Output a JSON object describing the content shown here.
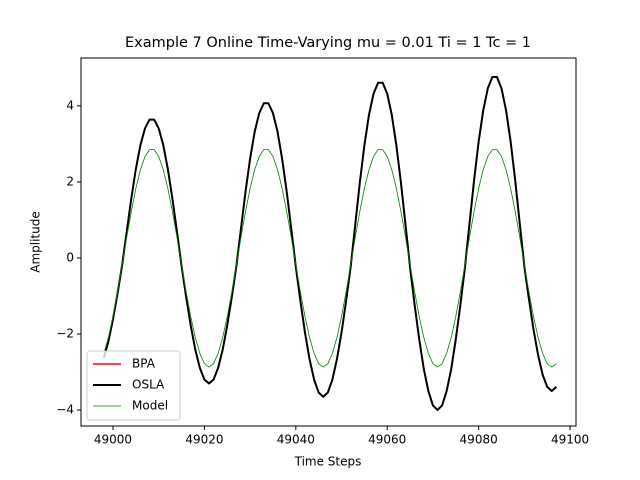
{
  "chart_data": {
    "type": "line",
    "title": "Example 7 Online Time-Varying mu = 0.01 Ti = 1 Tc = 1",
    "xlabel": "Time Steps",
    "ylabel": "Amplitude",
    "x": [
      48998,
      48999,
      49000,
      49001,
      49002,
      49003,
      49004,
      49005,
      49006,
      49007,
      49008,
      49009,
      49010,
      49011,
      49012,
      49013,
      49014,
      49015,
      49016,
      49017,
      49018,
      49019,
      49020,
      49021,
      49022,
      49023,
      49024,
      49025,
      49026,
      49027,
      49028,
      49029,
      49030,
      49031,
      49032,
      49033,
      49034,
      49035,
      49036,
      49037,
      49038,
      49039,
      49040,
      49041,
      49042,
      49043,
      49044,
      49045,
      49046,
      49047,
      49048,
      49049,
      49050,
      49051,
      49052,
      49053,
      49054,
      49055,
      49056,
      49057,
      49058,
      49059,
      49060,
      49061,
      49062,
      49063,
      49064,
      49065,
      49066,
      49067,
      49068,
      49069,
      49070,
      49071,
      49072,
      49073,
      49074,
      49075,
      49076,
      49077,
      49078,
      49079,
      49080,
      49081,
      49082,
      49083,
      49084,
      49085,
      49086,
      49087,
      49088,
      49089,
      49090,
      49091,
      49092,
      49093,
      49094,
      49095,
      49096,
      49097
    ],
    "series": [
      {
        "name": "BPA",
        "color": "#ff0000",
        "width": 1.5,
        "values": [
          -2.63,
          -2.19,
          -1.61,
          -0.93,
          -0.19,
          0.69,
          1.56,
          2.34,
          2.97,
          3.41,
          3.64,
          3.64,
          3.41,
          2.97,
          2.34,
          1.56,
          0.69,
          -0.21,
          -1.02,
          -1.77,
          -2.41,
          -2.89,
          -3.2,
          -3.3,
          -3.2,
          -2.89,
          -2.41,
          -1.77,
          -1.02,
          -0.21,
          0.77,
          1.75,
          2.61,
          3.32,
          3.81,
          4.07,
          4.07,
          3.81,
          3.32,
          2.61,
          1.75,
          0.77,
          -0.23,
          -1.13,
          -1.96,
          -2.66,
          -3.2,
          -3.54,
          -3.65,
          -3.54,
          -3.2,
          -2.66,
          -1.96,
          -1.13,
          -0.23,
          0.87,
          1.98,
          2.96,
          3.76,
          4.32,
          4.61,
          4.61,
          4.32,
          3.76,
          2.96,
          1.98,
          0.87,
          -0.25,
          -1.24,
          -2.14,
          -2.92,
          -3.5,
          -3.88,
          -4.0,
          -3.88,
          -3.5,
          -2.92,
          -2.14,
          -1.24,
          -0.25,
          0.9,
          2.04,
          3.06,
          3.88,
          4.46,
          4.76,
          4.76,
          4.46,
          3.88,
          3.06,
          2.04,
          0.9,
          -0.22,
          -1.08,
          -1.88,
          -2.55,
          -3.07,
          -3.39,
          -3.5,
          -3.39
        ]
      },
      {
        "name": "OSLA",
        "color": "#000000",
        "width": 2,
        "values": [
          -2.63,
          -2.19,
          -1.61,
          -0.93,
          -0.19,
          0.69,
          1.56,
          2.34,
          2.97,
          3.41,
          3.64,
          3.64,
          3.41,
          2.97,
          2.34,
          1.56,
          0.69,
          -0.21,
          -1.02,
          -1.77,
          -2.41,
          -2.89,
          -3.2,
          -3.3,
          -3.2,
          -2.89,
          -2.41,
          -1.77,
          -1.02,
          -0.21,
          0.77,
          1.75,
          2.61,
          3.32,
          3.81,
          4.07,
          4.07,
          3.81,
          3.32,
          2.61,
          1.75,
          0.77,
          -0.23,
          -1.13,
          -1.96,
          -2.66,
          -3.2,
          -3.54,
          -3.65,
          -3.54,
          -3.2,
          -2.66,
          -1.96,
          -1.13,
          -0.23,
          0.87,
          1.98,
          2.96,
          3.76,
          4.32,
          4.61,
          4.61,
          4.32,
          3.76,
          2.96,
          1.98,
          0.87,
          -0.25,
          -1.24,
          -2.14,
          -2.92,
          -3.5,
          -3.88,
          -4.0,
          -3.88,
          -3.5,
          -2.92,
          -2.14,
          -1.24,
          -0.25,
          0.9,
          2.04,
          3.06,
          3.88,
          4.46,
          4.76,
          4.76,
          4.46,
          3.88,
          3.06,
          2.04,
          0.9,
          -0.22,
          -1.08,
          -1.88,
          -2.55,
          -3.07,
          -3.39,
          -3.5,
          -3.39
        ]
      },
      {
        "name": "Model",
        "color": "#008000",
        "width": 0.8,
        "values": [
          -2.51,
          -2.09,
          -1.54,
          -0.89,
          -0.18,
          0.54,
          1.22,
          1.83,
          2.32,
          2.67,
          2.85,
          2.85,
          2.67,
          2.32,
          1.83,
          1.22,
          0.54,
          -0.18,
          -0.89,
          -1.54,
          -2.09,
          -2.51,
          -2.78,
          -2.87,
          -2.78,
          -2.51,
          -2.09,
          -1.54,
          -0.89,
          -0.18,
          0.54,
          1.22,
          1.83,
          2.32,
          2.67,
          2.85,
          2.85,
          2.67,
          2.32,
          1.83,
          1.22,
          0.54,
          -0.18,
          -0.89,
          -1.54,
          -2.09,
          -2.51,
          -2.78,
          -2.87,
          -2.78,
          -2.51,
          -2.09,
          -1.54,
          -0.89,
          -0.18,
          0.54,
          1.22,
          1.83,
          2.32,
          2.67,
          2.85,
          2.85,
          2.67,
          2.32,
          1.83,
          1.22,
          0.54,
          -0.18,
          -0.89,
          -1.54,
          -2.09,
          -2.51,
          -2.78,
          -2.87,
          -2.78,
          -2.51,
          -2.09,
          -1.54,
          -0.89,
          -0.18,
          0.54,
          1.22,
          1.83,
          2.32,
          2.67,
          2.85,
          2.85,
          2.67,
          2.32,
          1.83,
          1.22,
          0.54,
          -0.18,
          -0.89,
          -1.54,
          -2.09,
          -2.51,
          -2.78,
          -2.87,
          -2.78
        ]
      }
    ],
    "xlim": [
      48993,
      49101.3
    ],
    "xticks": [
      49000,
      49020,
      49040,
      49060,
      49080,
      49100
    ],
    "ylim": [
      -4.42,
      5.26
    ],
    "yticks": [
      {
        "value": -4,
        "label": "−4"
      },
      {
        "value": -2,
        "label": "−2"
      },
      0,
      2,
      4
    ],
    "legend": "lower left"
  }
}
